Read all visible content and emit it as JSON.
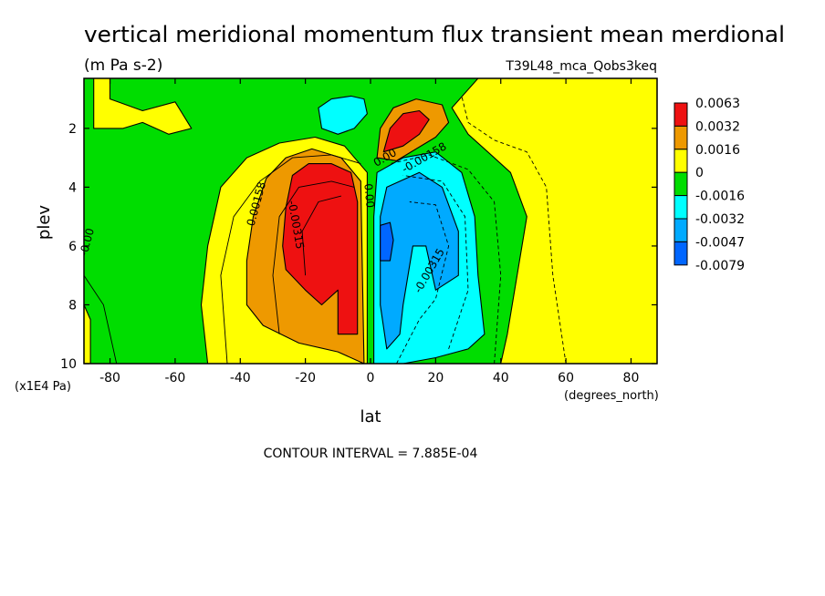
{
  "chart_data": {
    "type": "heatmap",
    "title": "vertical meridional momentum flux transient mean merdional",
    "units": "(m Pa s-2)",
    "run_label": "T39L48_mca_Qobs3keq",
    "xlabel": "lat",
    "x_units": "(degrees_north)",
    "ylabel": "plev",
    "y_units": "(x1E4 Pa)",
    "xlim": [
      -88,
      88
    ],
    "ylim": [
      10,
      0.3
    ],
    "x_ticks": [
      -80,
      -60,
      -40,
      -20,
      0,
      20,
      40,
      60,
      80
    ],
    "y_ticks": [
      2,
      4,
      6,
      8,
      10
    ],
    "contour_interval_text": "CONTOUR INTERVAL = 7.885E-04",
    "colorbar": {
      "levels": [
        "0.0063",
        "0.0032",
        "0.0016",
        "0",
        "-0.0016",
        "-0.0032",
        "-0.0047",
        "-0.0079"
      ],
      "colors": [
        "#ee1111",
        "#ee9900",
        "#ffff00",
        "#00dd00",
        "#00ffff",
        "#00aaff",
        "#0066ff"
      ]
    },
    "contour_labels": [
      {
        "text": "0.00158",
        "lat": -34,
        "plev": 4.6,
        "angle": -75
      },
      {
        "text": "-0.00315",
        "lat": -24,
        "plev": 5.3,
        "angle": 80
      },
      {
        "text": "-0.00",
        "lat": -86,
        "plev": 5.9,
        "angle": -75
      },
      {
        "text": "0.00",
        "lat": -1.5,
        "plev": 4.3,
        "angle": 85
      },
      {
        "text": "0.00",
        "lat": 5,
        "plev": 3.1,
        "angle": -30
      },
      {
        "text": "-0.00158",
        "lat": 17,
        "plev": 3.1,
        "angle": -30
      },
      {
        "text": "-0.00315",
        "lat": 19,
        "plev": 6.9,
        "angle": -60
      }
    ],
    "regions": {
      "yellow_sh": [
        [
          -50,
          10
        ],
        [
          -52,
          8
        ],
        [
          -50,
          6
        ],
        [
          -46,
          4
        ],
        [
          -38,
          3
        ],
        [
          -28,
          2.5
        ],
        [
          -17,
          2.3
        ],
        [
          -8,
          2.6
        ],
        [
          -1,
          3.5
        ],
        [
          -1,
          10
        ]
      ],
      "orange_sh": [
        [
          -38,
          8
        ],
        [
          -38,
          6.5
        ],
        [
          -36,
          5
        ],
        [
          -32,
          3.7
        ],
        [
          -26,
          3
        ],
        [
          -18,
          2.7
        ],
        [
          -9,
          3
        ],
        [
          -3,
          3.8
        ],
        [
          -2,
          10
        ],
        [
          -10,
          9.6
        ],
        [
          -22,
          9.3
        ],
        [
          -33,
          8.7
        ]
      ],
      "red_sh": [
        [
          -27,
          6
        ],
        [
          -26,
          4.7
        ],
        [
          -24,
          3.6
        ],
        [
          -19,
          3.2
        ],
        [
          -12,
          3.2
        ],
        [
          -6,
          3.5
        ],
        [
          -4,
          4.5
        ],
        [
          -4,
          9
        ],
        [
          -10,
          9
        ],
        [
          -10,
          7.5
        ],
        [
          -15,
          8
        ],
        [
          -20,
          7.5
        ],
        [
          -26,
          6.8
        ]
      ],
      "yellow_nh_top": [
        [
          -80,
          0.3
        ],
        [
          -80,
          1
        ],
        [
          -70,
          1.4
        ],
        [
          -60,
          1.1
        ],
        [
          -55,
          2
        ],
        [
          -62,
          2.2
        ],
        [
          -70,
          1.8
        ],
        [
          -76,
          2
        ],
        [
          -85,
          2
        ],
        [
          -85,
          0.3
        ]
      ],
      "yellow_nh_right": [
        [
          33,
          0.3
        ],
        [
          88,
          0.3
        ],
        [
          88,
          10
        ],
        [
          40,
          10
        ],
        [
          42,
          9
        ],
        [
          45,
          7
        ],
        [
          48,
          5
        ],
        [
          43,
          3.5
        ],
        [
          36,
          2.8
        ],
        [
          30,
          2.2
        ],
        [
          25,
          1.3
        ]
      ],
      "cyan_nh": [
        [
          2,
          3.5
        ],
        [
          10,
          3
        ],
        [
          20,
          2.8
        ],
        [
          28,
          3.5
        ],
        [
          32,
          5
        ],
        [
          33,
          7
        ],
        [
          35,
          9
        ],
        [
          30,
          9.5
        ],
        [
          20,
          9.8
        ],
        [
          10,
          10
        ],
        [
          1,
          10
        ],
        [
          1,
          5
        ]
      ],
      "lightblue_nh": [
        [
          5,
          4
        ],
        [
          15,
          3.5
        ],
        [
          22,
          4
        ],
        [
          27,
          5.5
        ],
        [
          27,
          7
        ],
        [
          20,
          7.5
        ],
        [
          17,
          6
        ],
        [
          13,
          6
        ],
        [
          10,
          8
        ],
        [
          9,
          9
        ],
        [
          5,
          9.5
        ],
        [
          3,
          8
        ],
        [
          3,
          5
        ]
      ],
      "blue_nh": [
        [
          3,
          5.3
        ],
        [
          6,
          5.2
        ],
        [
          7,
          5.8
        ],
        [
          6,
          6.5
        ],
        [
          3,
          6.5
        ]
      ],
      "cyan_nh_top": [
        [
          -16,
          1.3
        ],
        [
          -12,
          1
        ],
        [
          -6,
          0.9
        ],
        [
          -2,
          1
        ],
        [
          -1,
          1.5
        ],
        [
          -5,
          2
        ],
        [
          -10,
          2.2
        ],
        [
          -15,
          2
        ]
      ],
      "orange_nh_top": [
        [
          2,
          3
        ],
        [
          3,
          2
        ],
        [
          7,
          1.3
        ],
        [
          14,
          1
        ],
        [
          22,
          1.2
        ],
        [
          24,
          1.8
        ],
        [
          20,
          2.3
        ],
        [
          14,
          2.7
        ],
        [
          8,
          3.1
        ]
      ],
      "red_nh_top": [
        [
          4,
          2.8
        ],
        [
          6,
          2
        ],
        [
          10,
          1.5
        ],
        [
          15,
          1.4
        ],
        [
          18,
          1.7
        ],
        [
          15,
          2.2
        ],
        [
          10,
          2.6
        ]
      ],
      "yellow_sh_left_edge": [
        [
          -88,
          8
        ],
        [
          -86,
          8.5
        ],
        [
          -86,
          10
        ],
        [
          -88,
          10
        ]
      ]
    }
  }
}
